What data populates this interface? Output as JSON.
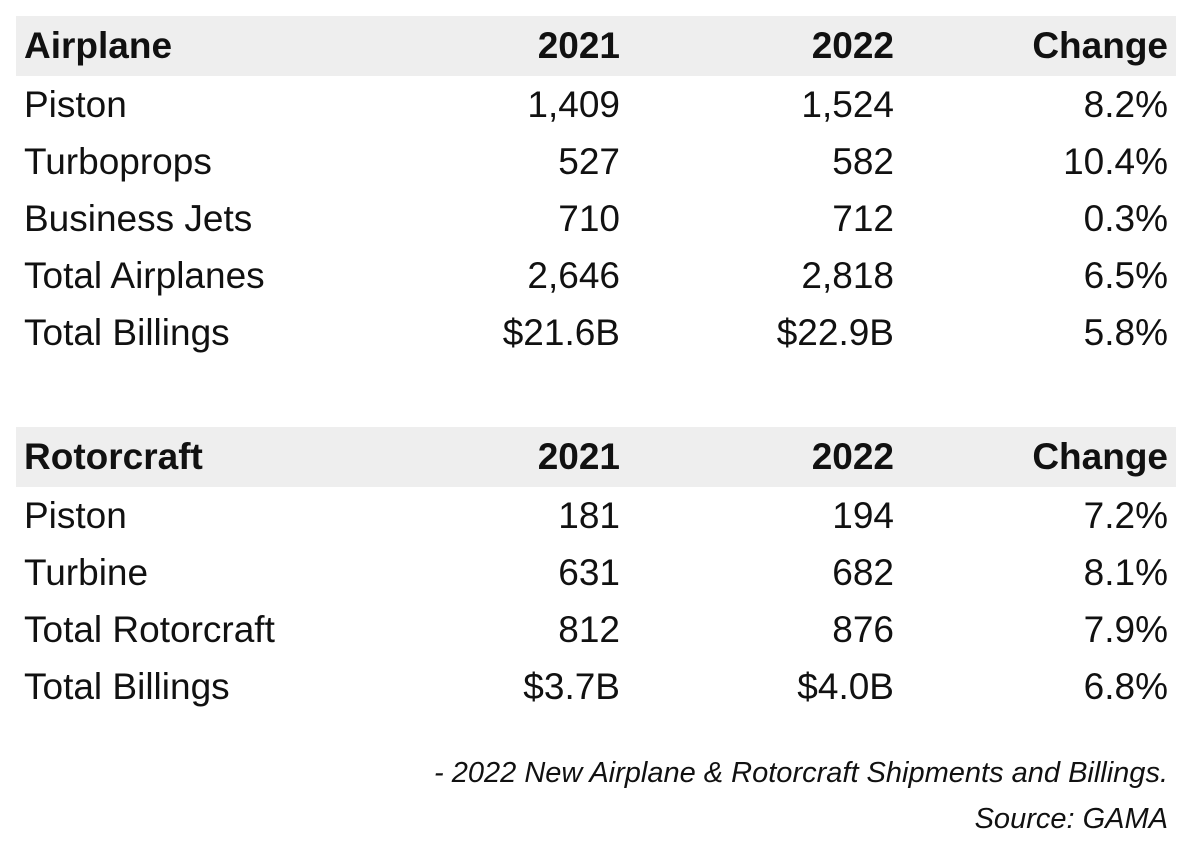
{
  "sections": [
    {
      "header": {
        "label": "Airplane",
        "col_2021": "2021",
        "col_2022": "2022",
        "col_change": "Change"
      },
      "rows": [
        {
          "label": "Piston",
          "v2021": "1,409",
          "v2022": "1,524",
          "change": "8.2%"
        },
        {
          "label": "Turboprops",
          "v2021": "527",
          "v2022": "582",
          "change": "10.4%"
        },
        {
          "label": "Business Jets",
          "v2021": "710",
          "v2022": "712",
          "change": "0.3%"
        },
        {
          "label": "Total Airplanes",
          "v2021": "2,646",
          "v2022": "2,818",
          "change": "6.5%"
        },
        {
          "label": "Total Billings",
          "v2021": "$21.6B",
          "v2022": "$22.9B",
          "change": "5.8%"
        }
      ]
    },
    {
      "header": {
        "label": "Rotorcraft",
        "col_2021": "2021",
        "col_2022": "2022",
        "col_change": "Change"
      },
      "rows": [
        {
          "label": "Piston",
          "v2021": "181",
          "v2022": "194",
          "change": "7.2%"
        },
        {
          "label": "Turbine",
          "v2021": "631",
          "v2022": "682",
          "change": "8.1%"
        },
        {
          "label": "Total Rotorcraft",
          "v2021": "812",
          "v2022": "876",
          "change": "7.9%"
        },
        {
          "label": "Total Billings",
          "v2021": "$3.7B",
          "v2022": "$4.0B",
          "change": "6.8%"
        }
      ]
    }
  ],
  "footnote": {
    "caption": "- 2022 New Airplane & Rotorcraft Shipments and Billings.",
    "source": "Source: GAMA"
  },
  "colors": {
    "header_background": "#eeeeee",
    "text": "#111111"
  }
}
